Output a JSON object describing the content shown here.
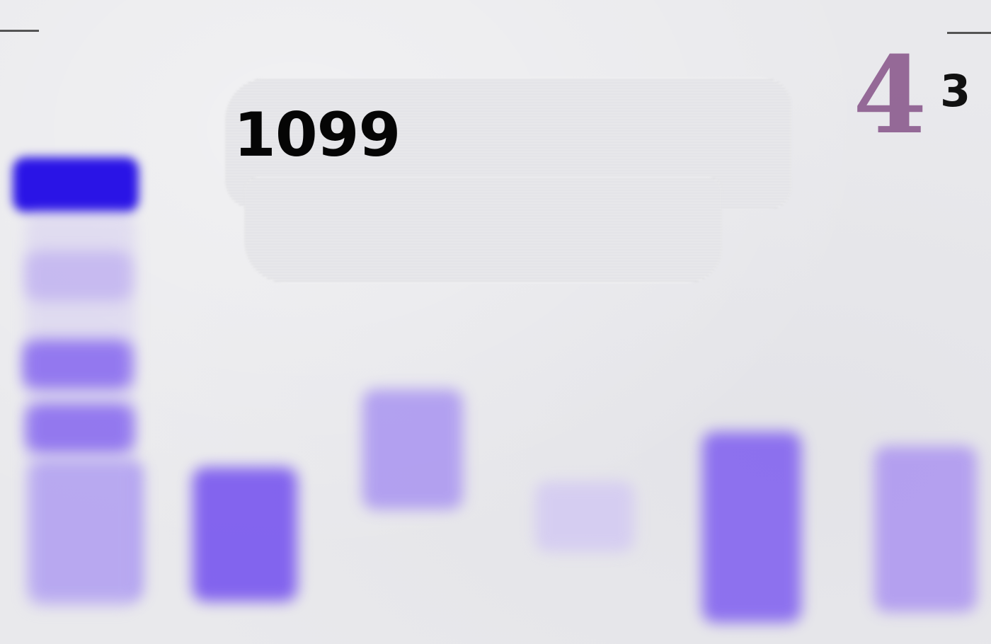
{
  "labels": {
    "sample_id": "1099",
    "gel_number": "4",
    "gel_subnumber": "3"
  },
  "colors": {
    "background": "#e9e9ec",
    "band_strong": "#2a14e6",
    "band_medium": "#6a4bee",
    "band_light": "#b7a9f0",
    "marker_ink": "#8c5c8e"
  },
  "lanes": [
    {
      "lane": 1,
      "bands": [
        {
          "intensity": "strong"
        },
        {
          "intensity": "light"
        },
        {
          "intensity": "medium"
        },
        {
          "intensity": "medium"
        },
        {
          "intensity": "light"
        }
      ]
    },
    {
      "lane": 2,
      "bands": [
        {
          "intensity": "medium"
        }
      ]
    },
    {
      "lane": 3,
      "bands": [
        {
          "intensity": "light"
        }
      ]
    },
    {
      "lane": 4,
      "bands": [
        {
          "intensity": "very-light"
        }
      ]
    },
    {
      "lane": 5,
      "bands": [
        {
          "intensity": "medium"
        }
      ]
    },
    {
      "lane": 6,
      "bands": [
        {
          "intensity": "light"
        }
      ]
    }
  ]
}
